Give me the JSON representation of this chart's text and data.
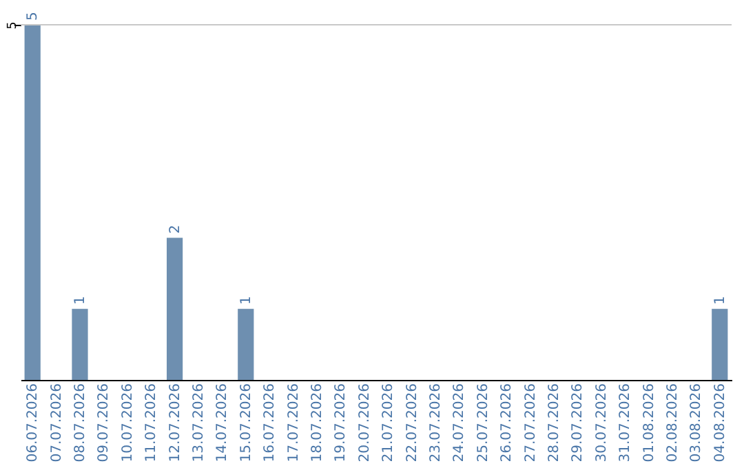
{
  "chart_data": {
    "type": "bar",
    "categories": [
      "06.07.2026",
      "07.07.2026",
      "08.07.2026",
      "09.07.2026",
      "10.07.2026",
      "11.07.2026",
      "12.07.2026",
      "13.07.2026",
      "14.07.2026",
      "15.07.2026",
      "16.07.2026",
      "17.07.2026",
      "18.07.2026",
      "19.07.2026",
      "20.07.2026",
      "21.07.2026",
      "22.07.2026",
      "23.07.2026",
      "24.07.2026",
      "25.07.2026",
      "26.07.2026",
      "27.07.2026",
      "28.07.2026",
      "29.07.2026",
      "30.07.2026",
      "31.07.2026",
      "01.08.2026",
      "02.08.2026",
      "03.08.2026",
      "04.08.2026"
    ],
    "values": [
      5,
      0,
      1,
      0,
      0,
      0,
      2,
      0,
      0,
      1,
      0,
      0,
      0,
      0,
      0,
      0,
      0,
      0,
      0,
      0,
      0,
      0,
      0,
      0,
      0,
      0,
      0,
      0,
      0,
      1
    ],
    "value_labels": [
      "5",
      null,
      "1",
      null,
      null,
      null,
      "2",
      null,
      null,
      "1",
      null,
      null,
      null,
      null,
      null,
      null,
      null,
      null,
      null,
      null,
      null,
      null,
      null,
      null,
      null,
      null,
      null,
      null,
      null,
      "1"
    ],
    "color": "#6e8fb0",
    "ylim": [
      0,
      5
    ],
    "yticks": [
      5
    ],
    "ref_lines": [
      {
        "axis": "y",
        "value": 5,
        "color": "#c8c8c8"
      }
    ]
  }
}
